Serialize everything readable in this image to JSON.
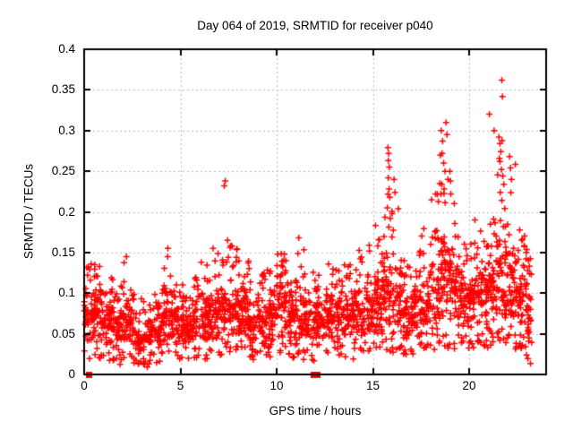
{
  "chart_data": {
    "type": "scatter",
    "title": "Day 064 of 2019, SRMTID for receiver p040",
    "xlabel": "GPS time / hours",
    "ylabel": "SRMTID / TECUs",
    "xlim": [
      0,
      24
    ],
    "ylim": [
      0,
      0.4
    ],
    "xticks": [
      0,
      5,
      10,
      15,
      20
    ],
    "xtick_labels": [
      "0",
      "5",
      "10",
      "15",
      "20"
    ],
    "yticks": [
      0,
      0.05,
      0.1,
      0.15,
      0.2,
      0.25,
      0.3,
      0.35,
      0.4
    ],
    "ytick_labels": [
      "0",
      "0.05",
      "0.1",
      "0.15",
      "0.2",
      "0.25",
      "0.3",
      "0.35",
      "0.4"
    ],
    "grid": true,
    "legend": "none",
    "marker": "plus",
    "marker_color": "#ff0000",
    "gap_marker": "filled-square",
    "grid_color": "#b9b9b9",
    "axis_color": "#000000",
    "background": "#ffffff",
    "density_bins": [
      [
        0.0,
        0.5,
        55,
        0.03,
        0.11,
        0.14
      ],
      [
        0.5,
        1.0,
        55,
        0.03,
        0.12,
        0.135
      ],
      [
        1.0,
        1.5,
        50,
        0.025,
        0.1,
        0.13
      ],
      [
        1.5,
        2.0,
        50,
        0.02,
        0.09,
        0.11
      ],
      [
        2.0,
        2.5,
        50,
        0.03,
        0.1,
        0.145
      ],
      [
        2.5,
        3.0,
        45,
        0.02,
        0.08,
        0.1
      ],
      [
        3.0,
        3.5,
        45,
        0.015,
        0.075,
        0.09
      ],
      [
        3.5,
        4.0,
        45,
        0.02,
        0.08,
        0.1
      ],
      [
        4.0,
        4.5,
        50,
        0.03,
        0.1,
        0.155
      ],
      [
        4.5,
        5.0,
        50,
        0.03,
        0.095,
        0.12
      ],
      [
        5.0,
        5.5,
        50,
        0.025,
        0.09,
        0.115
      ],
      [
        5.5,
        6.0,
        50,
        0.025,
        0.09,
        0.12
      ],
      [
        6.0,
        6.5,
        50,
        0.03,
        0.11,
        0.15
      ],
      [
        6.5,
        7.0,
        50,
        0.035,
        0.12,
        0.16
      ],
      [
        7.0,
        7.5,
        50,
        0.04,
        0.12,
        0.17
      ],
      [
        7.5,
        8.0,
        55,
        0.04,
        0.13,
        0.16
      ],
      [
        8.0,
        8.5,
        55,
        0.035,
        0.12,
        0.15
      ],
      [
        8.5,
        9.0,
        50,
        0.03,
        0.1,
        0.14
      ],
      [
        9.0,
        9.5,
        50,
        0.03,
        0.1,
        0.13
      ],
      [
        9.5,
        10.0,
        50,
        0.035,
        0.11,
        0.14
      ],
      [
        10.0,
        10.5,
        55,
        0.04,
        0.12,
        0.15
      ],
      [
        10.5,
        11.0,
        50,
        0.03,
        0.11,
        0.14
      ],
      [
        11.0,
        11.5,
        50,
        0.03,
        0.12,
        0.17
      ],
      [
        11.5,
        12.0,
        45,
        0.025,
        0.1,
        0.13
      ],
      [
        12.0,
        12.5,
        45,
        0.03,
        0.1,
        0.13
      ],
      [
        12.5,
        13.0,
        50,
        0.035,
        0.11,
        0.145
      ],
      [
        13.0,
        13.5,
        50,
        0.035,
        0.11,
        0.155
      ],
      [
        13.5,
        14.0,
        50,
        0.03,
        0.11,
        0.15
      ],
      [
        14.0,
        14.5,
        50,
        0.035,
        0.12,
        0.165
      ],
      [
        14.5,
        15.0,
        50,
        0.04,
        0.12,
        0.16
      ],
      [
        15.0,
        15.5,
        55,
        0.04,
        0.15,
        0.21
      ],
      [
        15.5,
        16.0,
        55,
        0.045,
        0.16,
        0.25
      ],
      [
        16.0,
        16.5,
        50,
        0.04,
        0.14,
        0.24
      ],
      [
        16.5,
        17.0,
        50,
        0.035,
        0.12,
        0.16
      ],
      [
        17.0,
        17.5,
        50,
        0.04,
        0.12,
        0.155
      ],
      [
        17.5,
        18.0,
        50,
        0.04,
        0.13,
        0.18
      ],
      [
        18.0,
        18.5,
        55,
        0.05,
        0.16,
        0.24
      ],
      [
        18.5,
        19.0,
        55,
        0.05,
        0.19,
        0.3
      ],
      [
        19.0,
        19.5,
        55,
        0.05,
        0.16,
        0.25
      ],
      [
        19.5,
        20.0,
        55,
        0.05,
        0.14,
        0.18
      ],
      [
        20.0,
        20.5,
        55,
        0.05,
        0.14,
        0.19
      ],
      [
        20.5,
        21.0,
        55,
        0.05,
        0.15,
        0.2
      ],
      [
        21.0,
        21.5,
        55,
        0.06,
        0.17,
        0.26
      ],
      [
        21.5,
        22.0,
        55,
        0.06,
        0.18,
        0.3
      ],
      [
        22.0,
        22.5,
        55,
        0.05,
        0.17,
        0.27
      ],
      [
        22.5,
        23.0,
        55,
        0.04,
        0.15,
        0.18
      ],
      [
        23.0,
        23.25,
        30,
        0.02,
        0.12,
        0.15
      ]
    ],
    "outlier_points": [
      [
        0.55,
        0.135
      ],
      [
        2.2,
        0.145
      ],
      [
        4.35,
        0.155
      ],
      [
        7.28,
        0.232
      ],
      [
        7.33,
        0.238
      ],
      [
        7.45,
        0.165
      ],
      [
        10.4,
        0.148
      ],
      [
        11.15,
        0.168
      ],
      [
        15.78,
        0.279
      ],
      [
        15.82,
        0.272
      ],
      [
        15.8,
        0.263
      ],
      [
        15.85,
        0.255
      ],
      [
        15.8,
        0.242
      ],
      [
        15.84,
        0.228
      ],
      [
        15.88,
        0.218
      ],
      [
        15.75,
        0.205
      ],
      [
        15.9,
        0.192
      ],
      [
        16.1,
        0.24
      ],
      [
        16.15,
        0.224
      ],
      [
        18.55,
        0.3
      ],
      [
        18.62,
        0.287
      ],
      [
        18.6,
        0.272
      ],
      [
        18.68,
        0.26
      ],
      [
        18.75,
        0.25
      ],
      [
        18.8,
        0.31
      ],
      [
        18.85,
        0.295
      ],
      [
        18.9,
        0.24
      ],
      [
        18.58,
        0.234
      ],
      [
        18.7,
        0.228
      ],
      [
        19.0,
        0.25
      ],
      [
        19.05,
        0.222
      ],
      [
        20.3,
        0.19
      ],
      [
        21.05,
        0.32
      ],
      [
        21.3,
        0.3
      ],
      [
        21.55,
        0.292
      ],
      [
        21.6,
        0.284
      ],
      [
        21.65,
        0.274
      ],
      [
        21.7,
        0.362
      ],
      [
        21.73,
        0.342
      ],
      [
        21.6,
        0.262
      ],
      [
        21.68,
        0.252
      ],
      [
        21.75,
        0.244
      ],
      [
        21.8,
        0.234
      ],
      [
        21.62,
        0.224
      ],
      [
        21.7,
        0.214
      ],
      [
        21.85,
        0.204
      ],
      [
        22.1,
        0.268
      ],
      [
        22.15,
        0.254
      ],
      [
        22.2,
        0.24
      ]
    ],
    "gap_marker_points": [
      [
        0.25,
        0
      ],
      [
        11.9,
        0
      ],
      [
        12.1,
        0
      ]
    ]
  }
}
